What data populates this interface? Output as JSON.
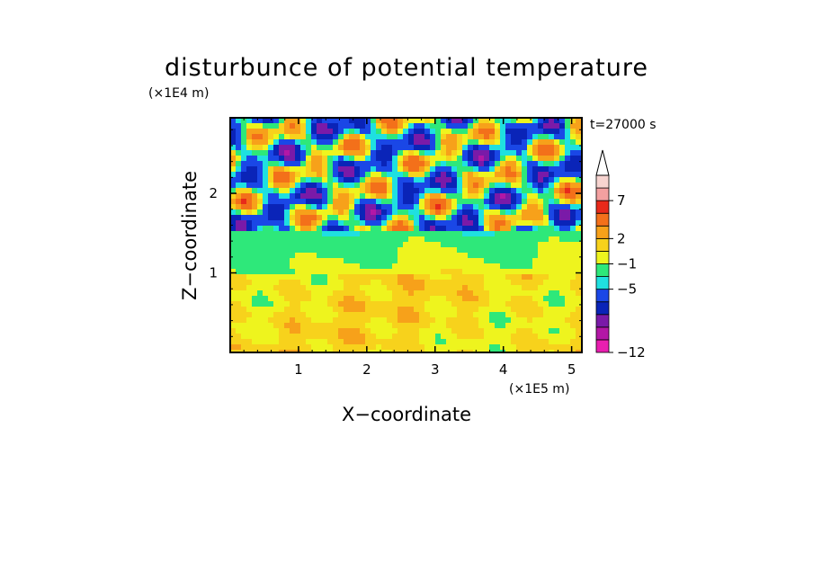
{
  "chart_data": {
    "type": "heatmap",
    "title": "disturbunce of potential temperature",
    "xlabel": "X−coordinate",
    "ylabel": "Z−coordinate",
    "x_unit": "(×1E5 m)",
    "y_unit": "(×1E4 m)",
    "time_label": "t=27000 s",
    "xlim": [
      0,
      5.15
    ],
    "ylim": [
      0,
      2.95
    ],
    "x_ticks": [
      "1",
      "2",
      "3",
      "4",
      "5"
    ],
    "x_tick_values": [
      1,
      2,
      3,
      4,
      5
    ],
    "y_ticks": [
      "1",
      "2"
    ],
    "y_tick_values": [
      1,
      2
    ],
    "colorbar": {
      "colors": [
        "#e91eb0",
        "#b317a6",
        "#7a1aa8",
        "#0a24b8",
        "#1a47e6",
        "#1fe0e0",
        "#2ee87a",
        "#eef41e",
        "#f7d21c",
        "#f7a11a",
        "#f3701a",
        "#e82a1a",
        "#f3a0a0",
        "#f7d4d0"
      ],
      "labels": [
        "−12",
        "−5",
        "−1",
        "2",
        "7"
      ],
      "label_levels": [
        -12,
        -5,
        -1,
        2,
        7
      ],
      "extend": "max"
    },
    "field_levels": [
      -12,
      -9,
      -7,
      -5,
      -3,
      -1,
      0,
      1,
      2,
      3,
      5,
      7,
      9,
      11,
      13
    ]
  },
  "colors": {
    "background": "#ffffff",
    "axis": "#000000"
  }
}
